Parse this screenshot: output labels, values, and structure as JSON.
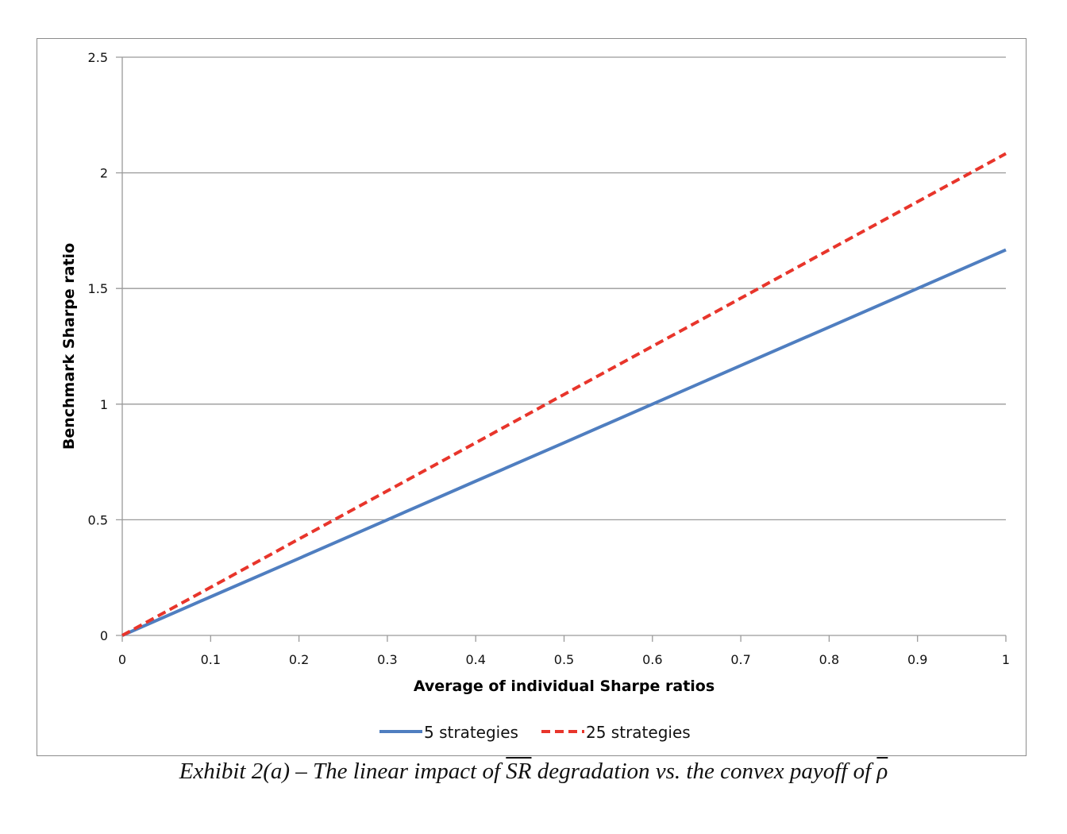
{
  "chart_data": {
    "type": "line",
    "title": "",
    "xlabel": "Average of individual Sharpe ratios",
    "ylabel": "Benchmark Sharpe ratio",
    "xlim": [
      0,
      1
    ],
    "ylim": [
      0,
      2.5
    ],
    "x_ticks": [
      "0",
      "0.1",
      "0.2",
      "0.3",
      "0.4",
      "0.5",
      "0.6",
      "0.7",
      "0.8",
      "0.9",
      "1"
    ],
    "y_ticks": [
      "0",
      "0.5",
      "1",
      "1.5",
      "2",
      "2.5"
    ],
    "grid": "horizontal",
    "legend_position": "bottom",
    "x": [
      0,
      0.1,
      0.2,
      0.3,
      0.4,
      0.5,
      0.6,
      0.7,
      0.8,
      0.9,
      1.0
    ],
    "series": [
      {
        "name": "5 strategies",
        "style": "solid",
        "color": "#4f7ec0",
        "values": [
          0,
          0.167,
          0.333,
          0.5,
          0.667,
          0.833,
          1.0,
          1.167,
          1.333,
          1.5,
          1.667
        ]
      },
      {
        "name": "25 strategies",
        "style": "dashed",
        "color": "#e8352b",
        "values": [
          0,
          0.208,
          0.417,
          0.625,
          0.833,
          1.042,
          1.25,
          1.458,
          1.667,
          1.875,
          2.083
        ]
      }
    ]
  },
  "caption": {
    "prefix": "Exhibit 2(a) – The linear impact of ",
    "sr": "SR",
    "middle": " degradation vs. the convex payoff of ",
    "rho": "ρ"
  }
}
